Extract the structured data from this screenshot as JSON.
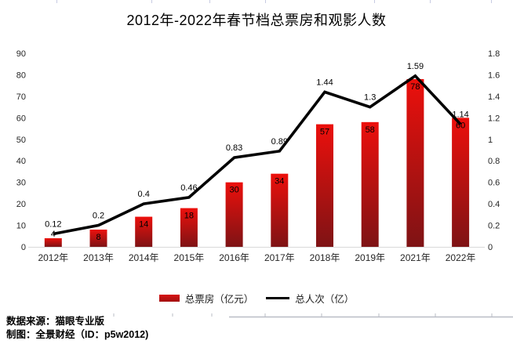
{
  "title": "2012年-2022年春节档总票房和观影人数",
  "chart_data": {
    "type": "bar",
    "subtype": "combo-bar-line",
    "title": "2012年-2022年春节档总票房和观影人数",
    "categories": [
      "2012年",
      "2013年",
      "2014年",
      "2015年",
      "2016年",
      "2017年",
      "2018年",
      "2019年",
      "2021年",
      "2022年"
    ],
    "series": [
      {
        "name": "总票房（亿元）",
        "kind": "bar",
        "axis": "left",
        "values": [
          4,
          8,
          14,
          18,
          30,
          34,
          57,
          58,
          78,
          60
        ]
      },
      {
        "name": "总人次（亿）",
        "kind": "line",
        "axis": "right",
        "values": [
          0.12,
          0.2,
          0.4,
          0.46,
          0.83,
          0.89,
          1.44,
          1.3,
          1.59,
          1.14
        ]
      }
    ],
    "left_axis": {
      "min": 0,
      "max": 90,
      "step": 10,
      "tick_labels": [
        "0",
        "10",
        "20",
        "30",
        "40",
        "50",
        "60",
        "70",
        "80",
        "90"
      ]
    },
    "right_axis": {
      "min": 0,
      "max": 1.8,
      "step": 0.2,
      "tick_labels": [
        "0",
        "0.2",
        "0.4",
        "0.6",
        "0.8",
        "1",
        "1.2",
        "1.4",
        "1.6",
        "1.8"
      ]
    },
    "grid": false,
    "legend_position": "bottom",
    "colors": {
      "bar_top": "#ec100c",
      "bar_bottom": "#7e1315",
      "line": "#000000",
      "axis_line": "#d9d9d9",
      "tick_text": "#262626"
    }
  },
  "legend": {
    "items": [
      {
        "label": "总票房（亿元）",
        "swatch": "bar-swatch"
      },
      {
        "label": "总人次（亿）",
        "swatch": "line-swatch"
      }
    ]
  },
  "footer": {
    "source": "数据来源：猫眼专业版",
    "credit": "制图：全景财经（ID：p5w2012)"
  }
}
